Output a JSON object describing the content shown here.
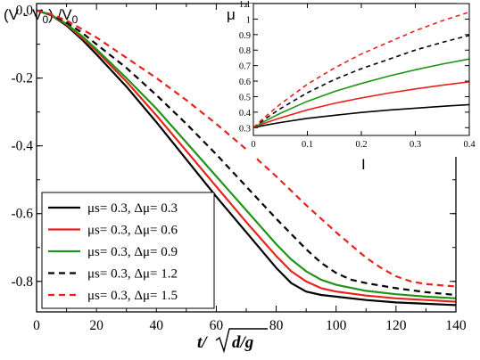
{
  "chart_data": [
    {
      "type": "line",
      "ylabel_prefix": "(V - V",
      "ylabel_sub1": "0",
      "ylabel_mid": ") /V",
      "ylabel_sub2": "0",
      "xlabel": "t/√(d/g)",
      "xlim": [
        0,
        140
      ],
      "ylim": [
        -0.89,
        0.02
      ],
      "xticks": [
        0,
        20,
        40,
        60,
        80,
        100,
        120,
        140
      ],
      "yticks": [
        0.0,
        -0.2,
        -0.4,
        -0.6,
        -0.8
      ],
      "xtick_labels": [
        "0",
        "20",
        "40",
        "60",
        "80",
        "100",
        "120",
        "140"
      ],
      "ytick_labels": [
        "0.0",
        "-0.2",
        "-0.4",
        "-0.6",
        "-0.8"
      ],
      "legend": "left",
      "series": [
        {
          "name": "μs= 0.3, Δμ= 0.3",
          "color": "#000000",
          "dash": "solid",
          "x": [
            0,
            5,
            10,
            15,
            20,
            30,
            40,
            50,
            60,
            70,
            80,
            85,
            90,
            95,
            100,
            110,
            120,
            130,
            140
          ],
          "y": [
            0,
            -0.015,
            -0.045,
            -0.085,
            -0.13,
            -0.225,
            -0.33,
            -0.44,
            -0.55,
            -0.655,
            -0.76,
            -0.805,
            -0.83,
            -0.84,
            -0.845,
            -0.855,
            -0.862,
            -0.866,
            -0.87
          ]
        },
        {
          "name": "μs= 0.3, Δμ= 0.6",
          "color": "#e8231b",
          "dash": "solid",
          "x": [
            0,
            5,
            10,
            15,
            20,
            30,
            40,
            50,
            60,
            70,
            80,
            85,
            90,
            95,
            100,
            110,
            120,
            130,
            140
          ],
          "y": [
            0,
            -0.015,
            -0.042,
            -0.08,
            -0.12,
            -0.21,
            -0.31,
            -0.415,
            -0.52,
            -0.625,
            -0.725,
            -0.77,
            -0.8,
            -0.82,
            -0.83,
            -0.842,
            -0.85,
            -0.855,
            -0.86
          ]
        },
        {
          "name": "μs= 0.3, Δμ= 0.9",
          "color": "#1f9418",
          "dash": "solid",
          "x": [
            0,
            5,
            10,
            15,
            20,
            30,
            40,
            50,
            60,
            70,
            80,
            85,
            90,
            95,
            100,
            110,
            120,
            130,
            140
          ],
          "y": [
            0,
            -0.014,
            -0.04,
            -0.075,
            -0.115,
            -0.2,
            -0.29,
            -0.39,
            -0.49,
            -0.59,
            -0.69,
            -0.735,
            -0.77,
            -0.795,
            -0.81,
            -0.828,
            -0.838,
            -0.845,
            -0.85
          ]
        },
        {
          "name": "μs= 0.3, Δμ= 1.2",
          "color": "#000000",
          "dash": "dashed",
          "x": [
            0,
            5,
            10,
            15,
            20,
            30,
            40,
            50,
            60,
            70,
            80,
            90,
            95,
            100,
            105,
            110,
            120,
            130,
            140
          ],
          "y": [
            0,
            -0.013,
            -0.036,
            -0.065,
            -0.1,
            -0.17,
            -0.25,
            -0.335,
            -0.425,
            -0.52,
            -0.615,
            -0.705,
            -0.745,
            -0.775,
            -0.795,
            -0.805,
            -0.82,
            -0.832,
            -0.84
          ]
        },
        {
          "name": "μs= 0.3, Δμ= 1.5",
          "color": "#e8231b",
          "dash": "dashed",
          "x": [
            0,
            5,
            10,
            15,
            20,
            30,
            40,
            50,
            60,
            70,
            80,
            90,
            100,
            110,
            115,
            120,
            125,
            130,
            140
          ],
          "y": [
            0,
            -0.012,
            -0.03,
            -0.055,
            -0.08,
            -0.14,
            -0.2,
            -0.265,
            -0.335,
            -0.41,
            -0.49,
            -0.575,
            -0.655,
            -0.73,
            -0.76,
            -0.785,
            -0.8,
            -0.808,
            -0.815
          ]
        }
      ]
    },
    {
      "type": "line",
      "ylabel": "μ",
      "xlabel": "I",
      "xlim": [
        0,
        0.4
      ],
      "ylim": [
        0.25,
        1.1
      ],
      "xticks": [
        0,
        0.1,
        0.2,
        0.3,
        0.4
      ],
      "yticks": [
        0.3,
        0.4,
        0.5,
        0.6,
        0.7,
        0.8,
        0.9,
        1.0,
        1.1
      ],
      "xtick_labels": [
        "0",
        "0.1",
        "0.2",
        "0.3",
        "0.4"
      ],
      "ytick_labels": [
        "0.3",
        "0.4",
        "0.5",
        "0.6",
        "0.7",
        "0.8",
        "0.9",
        "1",
        "1.1"
      ],
      "series": [
        {
          "color": "#000000",
          "dash": "solid",
          "x": [
            0,
            0.02,
            0.05,
            0.1,
            0.15,
            0.2,
            0.25,
            0.3,
            0.35,
            0.4
          ],
          "y": [
            0.3,
            0.315,
            0.333,
            0.36,
            0.38,
            0.398,
            0.413,
            0.426,
            0.438,
            0.449
          ]
        },
        {
          "color": "#e8231b",
          "dash": "solid",
          "x": [
            0,
            0.02,
            0.05,
            0.1,
            0.15,
            0.2,
            0.25,
            0.3,
            0.35,
            0.4
          ],
          "y": [
            0.3,
            0.328,
            0.363,
            0.415,
            0.457,
            0.492,
            0.523,
            0.55,
            0.574,
            0.596
          ]
        },
        {
          "color": "#1f9418",
          "dash": "solid",
          "x": [
            0,
            0.02,
            0.05,
            0.1,
            0.15,
            0.2,
            0.25,
            0.3,
            0.35,
            0.4
          ],
          "y": [
            0.3,
            0.34,
            0.393,
            0.47,
            0.533,
            0.585,
            0.632,
            0.673,
            0.71,
            0.743
          ]
        },
        {
          "color": "#000000",
          "dash": "dashed",
          "x": [
            0,
            0.02,
            0.05,
            0.1,
            0.15,
            0.2,
            0.25,
            0.3,
            0.35,
            0.4
          ],
          "y": [
            0.3,
            0.353,
            0.423,
            0.525,
            0.61,
            0.68,
            0.74,
            0.8,
            0.85,
            0.895
          ]
        },
        {
          "color": "#e8231b",
          "dash": "dashed",
          "x": [
            0,
            0.02,
            0.05,
            0.1,
            0.15,
            0.2,
            0.25,
            0.3,
            0.35,
            0.4
          ],
          "y": [
            0.3,
            0.365,
            0.452,
            0.58,
            0.685,
            0.775,
            0.85,
            0.925,
            0.99,
            1.045
          ]
        }
      ]
    }
  ]
}
